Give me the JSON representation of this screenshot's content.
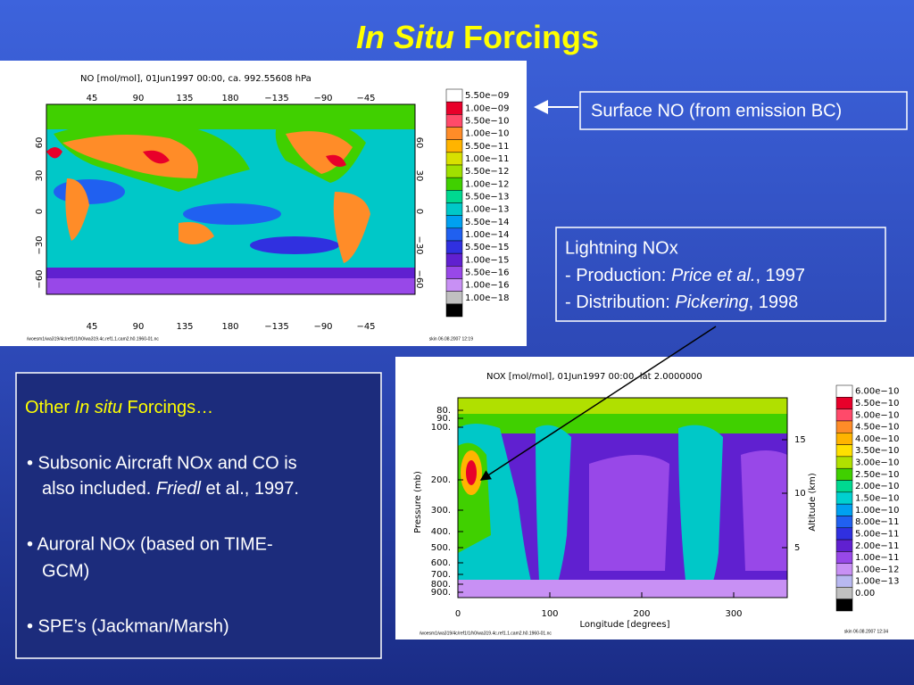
{
  "title": {
    "italic": "In Situ",
    "rest": "Forcings"
  },
  "callout_surface": "Surface NO (from emission BC)",
  "callout_lightning": {
    "heading": "Lightning NOx",
    "production": {
      "label": "- Production: ",
      "author": "Price et al.",
      "year": ", 1997"
    },
    "distribution": {
      "label": "- Distribution: ",
      "author": "Pickering",
      "year": ", 1998"
    }
  },
  "other_box": {
    "heading": {
      "pre": "Other ",
      "italic": "In situ",
      "post": " Forcings…"
    },
    "bullet1": {
      "line1": "• Subsonic Aircraft NOx and CO is",
      "line2_pre": "also included. ",
      "line2_italic": "Friedl",
      "line2_post": " et al., 1997."
    },
    "bullet2": {
      "line1": "• Auroral NOx (based on TIME-",
      "line2": "GCM)"
    },
    "bullet3": "• SPE’s (Jackman/Marsh)"
  },
  "map_plot": {
    "title": "NO [mol/mol], 01Jun1997 00:00, ca. 992.55608 hPa",
    "lon_ticks": [
      "45",
      "90",
      "135",
      "180",
      "−135",
      "−90",
      "−45"
    ],
    "lat_ticks": [
      "60",
      "30",
      "0",
      "−30",
      "−60"
    ],
    "colorbar_labels": [
      "5.50e−09",
      "1.00e−09",
      "5.50e−10",
      "1.00e−10",
      "5.50e−11",
      "1.00e−11",
      "5.50e−12",
      "1.00e−12",
      "5.50e−13",
      "1.00e−13",
      "5.50e−14",
      "1.00e−14",
      "5.50e−15",
      "1.00e−15",
      "5.50e−16",
      "1.00e−16",
      "1.00e−18"
    ],
    "colorbar_colors": [
      "#ffffff",
      "#e8002a",
      "#ff4a6a",
      "#ff8c28",
      "#ffb400",
      "#d8e000",
      "#a0e000",
      "#40d000",
      "#00d890",
      "#00c8c8",
      "#00a0f0",
      "#2060f0",
      "#3030e0",
      "#6020d0",
      "#9848e8",
      "#c890f4",
      "#c0c0c0",
      "#000000"
    ],
    "footer_left": "/woesm1/wa319/4c/ref1/1/h0/wa319.4c.ref1.1.cam2.h0.1960-01.nc",
    "footer_right": "skin 06.08.2007 12:19"
  },
  "section_plot": {
    "title": "NOX [mol/mol], 01Jun1997 00:00, lat 2.0000000",
    "pressure_ticks": [
      "80.",
      "90.",
      "100.",
      "200.",
      "300.",
      "400.",
      "500.",
      "600.",
      "700.",
      "800.",
      "900."
    ],
    "altitude_ticks": [
      "15",
      "10",
      "5"
    ],
    "lon_ticks": [
      "0",
      "100",
      "200",
      "300"
    ],
    "x_label": "Longitude [degrees]",
    "y_label": "Pressure (mb)",
    "y2_label": "Altitude (km)",
    "colorbar_labels": [
      "6.00e−10",
      "5.50e−10",
      "5.00e−10",
      "4.50e−10",
      "4.00e−10",
      "3.50e−10",
      "3.00e−10",
      "2.50e−10",
      "2.00e−10",
      "1.50e−10",
      "1.00e−10",
      "8.00e−11",
      "5.00e−11",
      "2.00e−11",
      "1.00e−11",
      "1.00e−12",
      "1.00e−13",
      "0.00"
    ],
    "colorbar_colors": [
      "#ffffff",
      "#e8002a",
      "#ff4a6a",
      "#ff8c28",
      "#ffb400",
      "#ffe000",
      "#b0e000",
      "#40d000",
      "#00d890",
      "#00d0d0",
      "#00a0f0",
      "#2060f0",
      "#3030e0",
      "#6020d0",
      "#9848e8",
      "#c890f4",
      "#b8b8f0",
      "#c0c0c0",
      "#000000"
    ],
    "footer_left": "/woesm1/wa319/4c/ref1/1/h0/wa319.4c.ref1.1.cam2.h0.1960-01.nc",
    "footer_right": "skin 06.08.2007 12:34"
  }
}
